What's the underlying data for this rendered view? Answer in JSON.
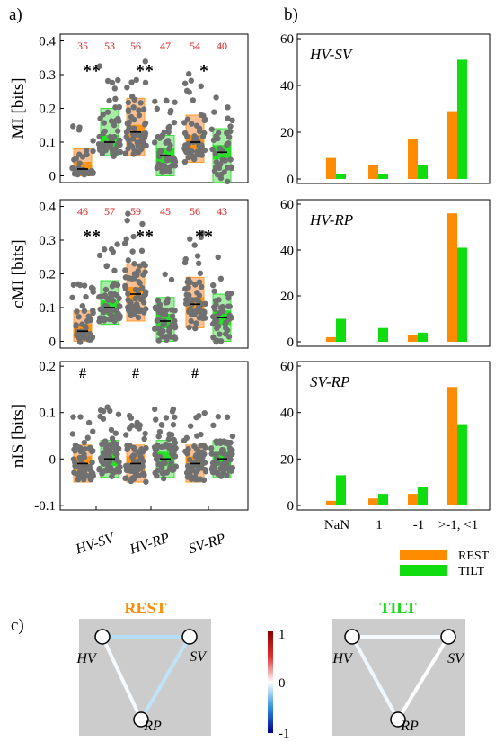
{
  "panel_labels": {
    "a": "a)",
    "b": "b)",
    "c": "c)"
  },
  "colors": {
    "rest": "#ff8c00",
    "tilt": "#10dd10",
    "rest_box": "#f8b07a",
    "tilt_box": "#8fe88f",
    "dot": "#707070",
    "count_text": "#dd2020",
    "panel_c_bg": "#cccccc"
  },
  "legend": {
    "rest": "REST",
    "tilt": "TILT"
  },
  "chart_data": [
    {
      "type": "scatter",
      "panel": "a",
      "ylabel": "MI [bits]",
      "ylim": [
        -0.02,
        0.42
      ],
      "yticks": [
        0,
        0.1,
        0.2,
        0.3,
        0.4
      ],
      "ytick_labels": [
        "0",
        "0.1",
        "0.2",
        "0.3",
        "0.4"
      ],
      "groups": [
        {
          "name": "HV-SV",
          "condition": "REST",
          "n": 35,
          "median": 0.02,
          "q1": 0.0,
          "q3": 0.08,
          "signif": "**"
        },
        {
          "name": "HV-SV",
          "condition": "TILT",
          "n": 53,
          "median": 0.1,
          "q1": 0.06,
          "q3": 0.2,
          "signif": ""
        },
        {
          "name": "HV-RP",
          "condition": "REST",
          "n": 56,
          "median": 0.13,
          "q1": 0.06,
          "q3": 0.23,
          "signif": "**"
        },
        {
          "name": "HV-RP",
          "condition": "TILT",
          "n": 47,
          "median": 0.06,
          "q1": 0.0,
          "q3": 0.12,
          "signif": ""
        },
        {
          "name": "SV-RP",
          "condition": "REST",
          "n": 54,
          "median": 0.1,
          "q1": 0.04,
          "q3": 0.18,
          "signif": "*"
        },
        {
          "name": "SV-RP",
          "condition": "TILT",
          "n": 40,
          "median": 0.07,
          "q1": -0.02,
          "q3": 0.14,
          "signif": ""
        }
      ]
    },
    {
      "type": "scatter",
      "panel": "a",
      "ylabel": "cMI [bits]",
      "ylim": [
        -0.02,
        0.42
      ],
      "yticks": [
        0,
        0.1,
        0.2,
        0.3,
        0.4
      ],
      "ytick_labels": [
        "0",
        "0.1",
        "0.2",
        "0.3",
        "0.4"
      ],
      "groups": [
        {
          "name": "HV-SV",
          "condition": "REST",
          "n": 46,
          "median": 0.03,
          "q1": 0.0,
          "q3": 0.09,
          "signif": "**"
        },
        {
          "name": "HV-SV",
          "condition": "TILT",
          "n": 57,
          "median": 0.1,
          "q1": 0.05,
          "q3": 0.18,
          "signif": ""
        },
        {
          "name": "HV-RP",
          "condition": "REST",
          "n": 59,
          "median": 0.14,
          "q1": 0.06,
          "q3": 0.23,
          "signif": "**"
        },
        {
          "name": "HV-RP",
          "condition": "TILT",
          "n": 45,
          "median": 0.06,
          "q1": 0.0,
          "q3": 0.13,
          "signif": ""
        },
        {
          "name": "SV-RP",
          "condition": "REST",
          "n": 56,
          "median": 0.11,
          "q1": 0.04,
          "q3": 0.19,
          "signif": "**"
        },
        {
          "name": "SV-RP",
          "condition": "TILT",
          "n": 43,
          "median": 0.07,
          "q1": 0.0,
          "q3": 0.14,
          "signif": ""
        }
      ]
    },
    {
      "type": "scatter",
      "panel": "a",
      "ylabel": "nIS [bits]",
      "ylim": [
        -0.11,
        0.21
      ],
      "yticks": [
        -0.1,
        0,
        0.1,
        0.2
      ],
      "ytick_labels": [
        "-0.1",
        "0",
        "0.1",
        "0.2"
      ],
      "xticks": [
        "HV-SV",
        "HV-RP",
        "SV-RP"
      ],
      "groups": [
        {
          "name": "HV-SV",
          "condition": "REST",
          "median": -0.01,
          "q1": -0.05,
          "q3": 0.03,
          "signif": "#"
        },
        {
          "name": "HV-SV",
          "condition": "TILT",
          "median": 0.0,
          "q1": -0.04,
          "q3": 0.04,
          "signif": ""
        },
        {
          "name": "HV-RP",
          "condition": "REST",
          "median": -0.01,
          "q1": -0.05,
          "q3": 0.03,
          "signif": "#"
        },
        {
          "name": "HV-RP",
          "condition": "TILT",
          "median": 0.0,
          "q1": -0.04,
          "q3": 0.04,
          "signif": ""
        },
        {
          "name": "SV-RP",
          "condition": "REST",
          "median": -0.01,
          "q1": -0.05,
          "q3": 0.03,
          "signif": "#"
        },
        {
          "name": "SV-RP",
          "condition": "TILT",
          "median": 0.0,
          "q1": -0.04,
          "q3": 0.04,
          "signif": ""
        }
      ]
    },
    {
      "type": "bar",
      "panel": "b",
      "title": "HV-SV",
      "categories": [
        "NaN",
        "1",
        "-1",
        ">-1, <1"
      ],
      "ylim": [
        0,
        60
      ],
      "yticks": [
        0,
        20,
        40,
        60
      ],
      "series": [
        {
          "name": "REST",
          "values": [
            9,
            6,
            17,
            29
          ]
        },
        {
          "name": "TILT",
          "values": [
            2,
            2,
            6,
            51
          ]
        }
      ]
    },
    {
      "type": "bar",
      "panel": "b",
      "title": "HV-RP",
      "categories": [
        "NaN",
        "1",
        "-1",
        ">-1, <1"
      ],
      "ylim": [
        0,
        60
      ],
      "yticks": [
        0,
        20,
        40,
        60
      ],
      "series": [
        {
          "name": "REST",
          "values": [
            2,
            0,
            3,
            56
          ]
        },
        {
          "name": "TILT",
          "values": [
            10,
            6,
            4,
            41
          ]
        }
      ]
    },
    {
      "type": "bar",
      "panel": "b",
      "title": "SV-RP",
      "categories": [
        "NaN",
        "1",
        "-1",
        ">-1, <1"
      ],
      "ylim": [
        0,
        60
      ],
      "yticks": [
        0,
        20,
        40,
        60
      ],
      "series": [
        {
          "name": "REST",
          "values": [
            2,
            3,
            5,
            51
          ]
        },
        {
          "name": "TILT",
          "values": [
            13,
            5,
            8,
            35
          ]
        }
      ]
    }
  ],
  "networks": [
    {
      "title": "REST",
      "title_color": "#ff8c00",
      "nodes": [
        "HV",
        "SV",
        "RP"
      ],
      "edges": [
        {
          "from": "HV",
          "to": "SV",
          "value": -0.35
        },
        {
          "from": "HV",
          "to": "RP",
          "value": -0.05
        },
        {
          "from": "SV",
          "to": "RP",
          "value": -0.3
        }
      ]
    },
    {
      "title": "TILT",
      "title_color": "#10dd10",
      "nodes": [
        "HV",
        "SV",
        "RP"
      ],
      "edges": [
        {
          "from": "HV",
          "to": "SV",
          "value": -0.05
        },
        {
          "from": "HV",
          "to": "RP",
          "value": -0.08
        },
        {
          "from": "SV",
          "to": "RP",
          "value": 0.0
        }
      ]
    }
  ],
  "colorbar": {
    "ticks": [
      "1",
      "0",
      "-1"
    ],
    "range": [
      -1,
      1
    ]
  }
}
